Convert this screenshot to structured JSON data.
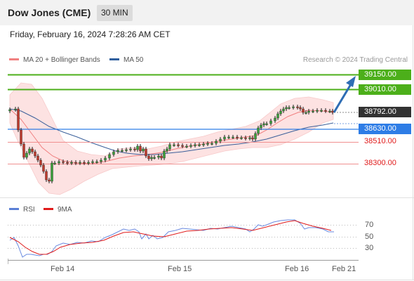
{
  "header": {
    "title": "Dow Jones (CME)",
    "timeframe": "30 MIN"
  },
  "datetime": "Friday, February 16, 2024 7:28:26 AM CET",
  "legend": {
    "ma20_label": "MA 20 + Bollinger Bands",
    "ma20_color": "#f08080",
    "ma50_label": "MA 50",
    "ma50_color": "#2f5f9e"
  },
  "credit": "Research © 2024 Trading Central",
  "levels": {
    "resistance2": "39150.00",
    "resistance1": "39010.00",
    "last_price": "38792.00",
    "pivot": "38630.00",
    "support1": "38510.00",
    "support2": "38300.00"
  },
  "rsi_legend": {
    "rsi_label": "RSI",
    "rsi_color": "#5a7fd6",
    "ma_label": "9MA",
    "ma_color": "#e01b1b"
  },
  "rsi_ticks": [
    "70",
    "50",
    "30"
  ],
  "x_labels": [
    "Feb 14",
    "Feb 15",
    "Feb 16",
    "Feb 21"
  ],
  "colors": {
    "green": "#4caf1a",
    "blue": "#2e7de6",
    "red": "#e01b1b",
    "dark": "#333333"
  }
}
